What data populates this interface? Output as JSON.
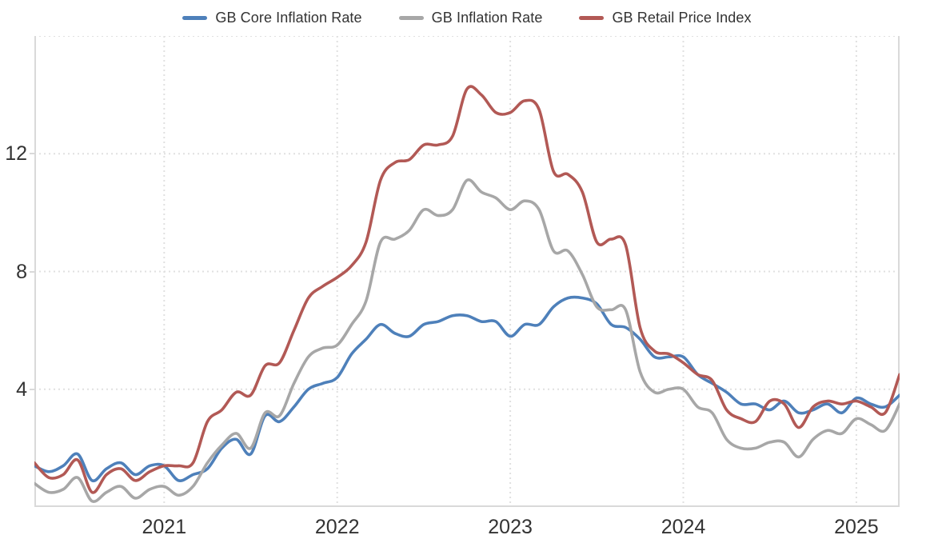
{
  "chart_data": {
    "type": "line",
    "title": "",
    "xlabel": "",
    "ylabel": "",
    "ylim": [
      0,
      16
    ],
    "y_ticks": [
      12,
      8,
      4
    ],
    "y_gridlines": [
      16,
      12,
      8,
      4
    ],
    "x_ticks": [
      {
        "label": "2021",
        "month_index": 9
      },
      {
        "label": "2022",
        "month_index": 21
      },
      {
        "label": "2023",
        "month_index": 33
      },
      {
        "label": "2024",
        "month_index": 45
      },
      {
        "label": "2025",
        "month_index": 57
      }
    ],
    "x_range_months": 60,
    "frequency": "monthly",
    "start_month": "2020-04",
    "end_month": "2025-04",
    "grid": "dotted",
    "legend_position": "top",
    "series": [
      {
        "name": "GB Core Inflation Rate",
        "color": "#4e80ba",
        "values": [
          1.4,
          1.2,
          1.4,
          1.8,
          0.9,
          1.3,
          1.5,
          1.1,
          1.4,
          1.4,
          0.9,
          1.1,
          1.3,
          2.0,
          2.3,
          1.8,
          3.1,
          2.9,
          3.4,
          4.0,
          4.2,
          4.4,
          5.2,
          5.7,
          6.2,
          5.9,
          5.8,
          6.2,
          6.3,
          6.5,
          6.5,
          6.3,
          6.3,
          5.8,
          6.2,
          6.2,
          6.8,
          7.1,
          7.1,
          6.9,
          6.2,
          6.1,
          5.7,
          5.1,
          5.1,
          5.1,
          4.5,
          4.2,
          3.9,
          3.5,
          3.5,
          3.3,
          3.6,
          3.2,
          3.3,
          3.5,
          3.2,
          3.7,
          3.5,
          3.4,
          3.8
        ]
      },
      {
        "name": "GB Inflation Rate",
        "color": "#a7a7a7",
        "values": [
          0.8,
          0.5,
          0.6,
          1.0,
          0.2,
          0.5,
          0.7,
          0.3,
          0.6,
          0.7,
          0.4,
          0.7,
          1.5,
          2.1,
          2.5,
          2.0,
          3.2,
          3.1,
          4.2,
          5.1,
          5.4,
          5.5,
          6.2,
          7.0,
          9.0,
          9.1,
          9.4,
          10.1,
          9.9,
          10.1,
          11.1,
          10.7,
          10.5,
          10.1,
          10.4,
          10.1,
          8.7,
          8.7,
          7.9,
          6.8,
          6.7,
          6.7,
          4.6,
          3.9,
          4.0,
          4.0,
          3.4,
          3.2,
          2.3,
          2.0,
          2.0,
          2.2,
          2.2,
          1.7,
          2.3,
          2.6,
          2.5,
          3.0,
          2.8,
          2.6,
          3.5
        ]
      },
      {
        "name": "GB Retail Price Index",
        "color": "#b25955",
        "values": [
          1.5,
          1.0,
          1.1,
          1.6,
          0.5,
          1.1,
          1.3,
          0.9,
          1.2,
          1.4,
          1.4,
          1.5,
          2.9,
          3.3,
          3.9,
          3.8,
          4.8,
          4.9,
          6.0,
          7.1,
          7.5,
          7.8,
          8.2,
          9.0,
          11.1,
          11.7,
          11.8,
          12.3,
          12.3,
          12.6,
          14.2,
          14.0,
          13.4,
          13.4,
          13.8,
          13.5,
          11.4,
          11.3,
          10.7,
          9.0,
          9.1,
          8.9,
          6.1,
          5.3,
          5.2,
          4.9,
          4.5,
          4.3,
          3.3,
          3.0,
          2.9,
          3.6,
          3.5,
          2.7,
          3.4,
          3.6,
          3.5,
          3.6,
          3.4,
          3.2,
          4.5
        ]
      }
    ]
  },
  "colors": {
    "background": "#ffffff",
    "grid_dotted": "#e0e0e0",
    "axis_line": "#d9d9d9",
    "label_text": "#333333"
  }
}
